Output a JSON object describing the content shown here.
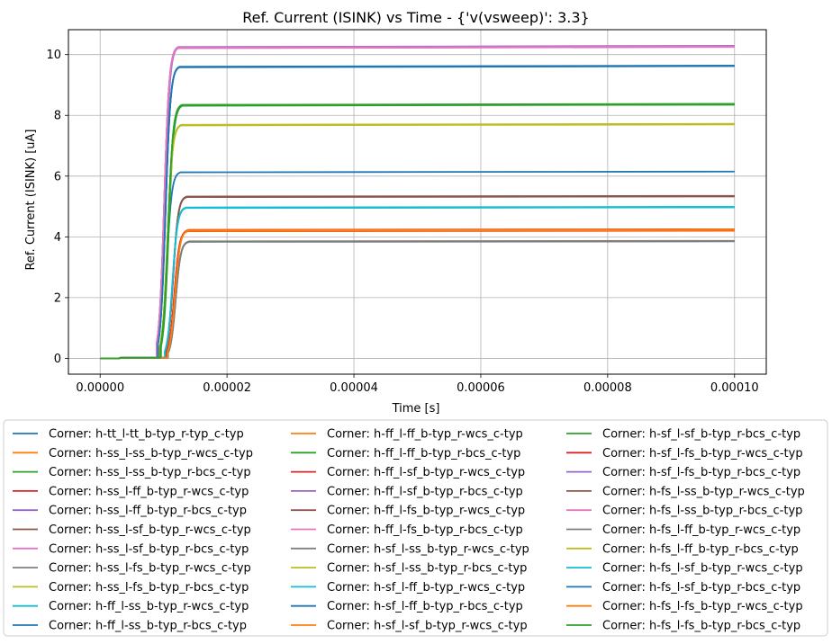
{
  "chart_data": {
    "type": "line",
    "title": "Ref. Current (ISINK) vs Time - {'v(vsweep)': 3.3}",
    "xlabel": "Time [s]",
    "ylabel": "Ref. Current (ISINK) [uA]",
    "xlim": [
      -5e-06,
      0.000105
    ],
    "ylim": [
      -0.52,
      10.82
    ],
    "x_ticks": [
      0,
      2e-05,
      4e-05,
      6e-05,
      8e-05,
      0.0001
    ],
    "x_tick_labels": [
      "0.00000",
      "0.00002",
      "0.00004",
      "0.00006",
      "0.00008",
      "0.00010"
    ],
    "y_ticks": [
      0,
      2,
      4,
      6,
      8,
      10
    ],
    "y_tick_labels": [
      "0",
      "2",
      "4",
      "6",
      "8",
      "10"
    ],
    "grid": true,
    "legend_placement": "below plot, 3 columns",
    "colors": [
      "#1f77b4",
      "#ff7f0e",
      "#2ca02c",
      "#d62728",
      "#9467bd",
      "#8c564b",
      "#e377c2",
      "#7f7f7f",
      "#bcbd22",
      "#17becf"
    ],
    "series": [
      {
        "name": "Corner: h-tt_l-tt_b-typ_r-typ_c-typ",
        "rise_t": 1.05e-05,
        "final": 6.15
      },
      {
        "name": "Corner: h-ss_l-ss_b-typ_r-wcs_c-typ",
        "rise_t": 1.18e-05,
        "final": 4.25
      },
      {
        "name": "Corner: h-ss_l-ss_b-typ_r-bcs_c-typ",
        "rise_t": 1.08e-05,
        "final": 8.35
      },
      {
        "name": "Corner: h-ss_l-ff_b-typ_r-wcs_c-typ",
        "rise_t": 1.17e-05,
        "final": 4.22
      },
      {
        "name": "Corner: h-ss_l-ff_b-typ_r-bcs_c-typ",
        "rise_t": 1.02e-05,
        "final": 10.28
      },
      {
        "name": "Corner: h-ss_l-sf_b-typ_r-wcs_c-typ",
        "rise_t": 1.15e-05,
        "final": 5.35
      },
      {
        "name": "Corner: h-ss_l-sf_b-typ_r-bcs_c-typ",
        "rise_t": 1.01e-05,
        "final": 10.26
      },
      {
        "name": "Corner: h-ss_l-fs_b-typ_r-wcs_c-typ",
        "rise_t": 1.19e-05,
        "final": 3.87
      },
      {
        "name": "Corner: h-ss_l-fs_b-typ_r-bcs_c-typ",
        "rise_t": 1.06e-05,
        "final": 7.7
      },
      {
        "name": "Corner: h-ff_l-ss_b-typ_r-wcs_c-typ",
        "rise_t": 1.14e-05,
        "final": 4.98
      },
      {
        "name": "Corner: h-ff_l-ss_b-typ_r-bcs_c-typ",
        "rise_t": 1.03e-05,
        "final": 9.63
      },
      {
        "name": "Corner: h-ff_l-ff_b-typ_r-wcs_c-typ",
        "rise_t": 1.17e-05,
        "final": 4.2
      },
      {
        "name": "Corner: h-ff_l-ff_b-typ_r-bcs_c-typ",
        "rise_t": 1.07e-05,
        "final": 8.37
      },
      {
        "name": "Corner: h-ff_l-sf_b-typ_r-wcs_c-typ",
        "rise_t": 1.18e-05,
        "final": 4.24
      },
      {
        "name": "Corner: h-ff_l-sf_b-typ_r-bcs_c-typ",
        "rise_t": 1.01e-05,
        "final": 10.29
      },
      {
        "name": "Corner: h-ff_l-fs_b-typ_r-wcs_c-typ",
        "rise_t": 1.15e-05,
        "final": 5.33
      },
      {
        "name": "Corner: h-ff_l-fs_b-typ_r-bcs_c-typ",
        "rise_t": 1.01e-05,
        "final": 10.25
      },
      {
        "name": "Corner: h-sf_l-ss_b-typ_r-wcs_c-typ",
        "rise_t": 1.19e-05,
        "final": 3.85
      },
      {
        "name": "Corner: h-sf_l-ss_b-typ_r-bcs_c-typ",
        "rise_t": 1.06e-05,
        "final": 7.72
      },
      {
        "name": "Corner: h-sf_l-ff_b-typ_r-wcs_c-typ",
        "rise_t": 1.14e-05,
        "final": 4.97
      },
      {
        "name": "Corner: h-sf_l-ff_b-typ_r-bcs_c-typ",
        "rise_t": 1.03e-05,
        "final": 9.62
      },
      {
        "name": "Corner: h-sf_l-sf_b-typ_r-wcs_c-typ",
        "rise_t": 1.18e-05,
        "final": 4.23
      },
      {
        "name": "Corner: h-sf_l-sf_b-typ_r-bcs_c-typ",
        "rise_t": 1.07e-05,
        "final": 8.36
      },
      {
        "name": "Corner: h-sf_l-fs_b-typ_r-wcs_c-typ",
        "rise_t": 1.17e-05,
        "final": 4.21
      },
      {
        "name": "Corner: h-sf_l-fs_b-typ_r-bcs_c-typ",
        "rise_t": 1.01e-05,
        "final": 10.27
      },
      {
        "name": "Corner: h-fs_l-ss_b-typ_r-wcs_c-typ",
        "rise_t": 1.15e-05,
        "final": 5.34
      },
      {
        "name": "Corner: h-fs_l-ss_b-typ_r-bcs_c-typ",
        "rise_t": 1.01e-05,
        "final": 10.27
      },
      {
        "name": "Corner: h-fs_l-ff_b-typ_r-wcs_c-typ",
        "rise_t": 1.19e-05,
        "final": 3.86
      },
      {
        "name": "Corner: h-fs_l-ff_b-typ_r-bcs_c-typ",
        "rise_t": 1.06e-05,
        "final": 7.71
      },
      {
        "name": "Corner: h-fs_l-sf_b-typ_r-wcs_c-typ",
        "rise_t": 1.14e-05,
        "final": 4.99
      },
      {
        "name": "Corner: h-fs_l-sf_b-typ_r-bcs_c-typ",
        "rise_t": 1.03e-05,
        "final": 9.64
      },
      {
        "name": "Corner: h-fs_l-fs_b-typ_r-wcs_c-typ",
        "rise_t": 1.18e-05,
        "final": 4.22
      },
      {
        "name": "Corner: h-fs_l-fs_b-typ_r-bcs_c-typ",
        "rise_t": 1.07e-05,
        "final": 8.38
      }
    ]
  }
}
